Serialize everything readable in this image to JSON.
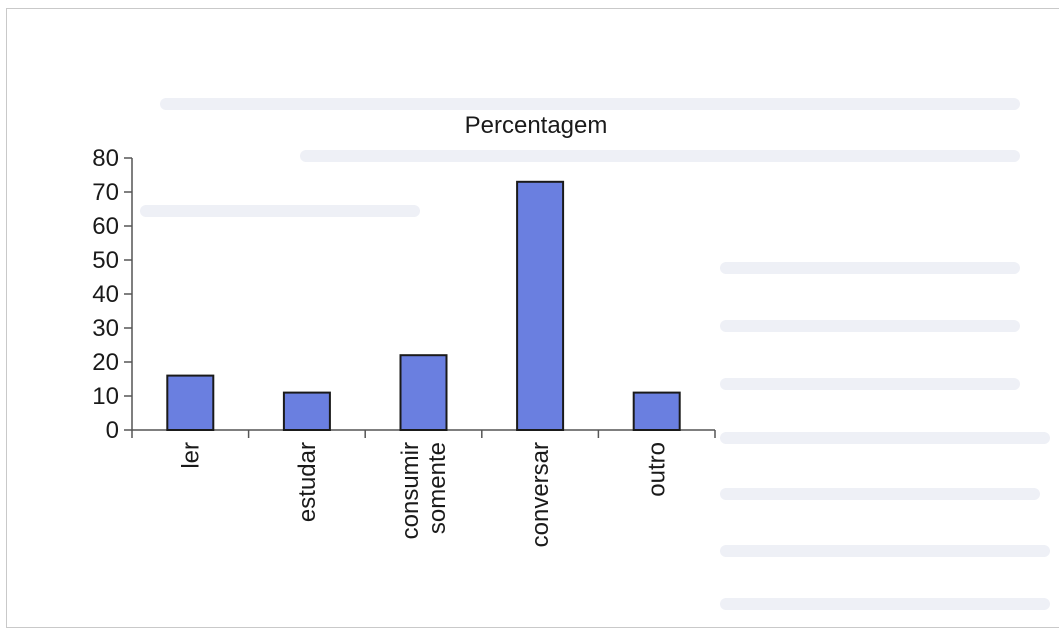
{
  "chart_data": {
    "type": "bar",
    "title": "Percentagem",
    "categories": [
      [
        "ler"
      ],
      [
        "estudar"
      ],
      [
        "consumir",
        "somente"
      ],
      [
        "conversar"
      ],
      [
        "outro"
      ]
    ],
    "values": [
      16,
      11,
      22,
      73,
      11
    ],
    "ylim": [
      0,
      80
    ],
    "yticks": [
      "0",
      "10",
      "20",
      "30",
      "40",
      "50",
      "60",
      "70",
      "80"
    ],
    "xlabel": "",
    "ylabel": "",
    "legend": "none",
    "grid": false,
    "bar_color": "#6a7fe0",
    "bar_stroke": "#1a1a1a"
  }
}
